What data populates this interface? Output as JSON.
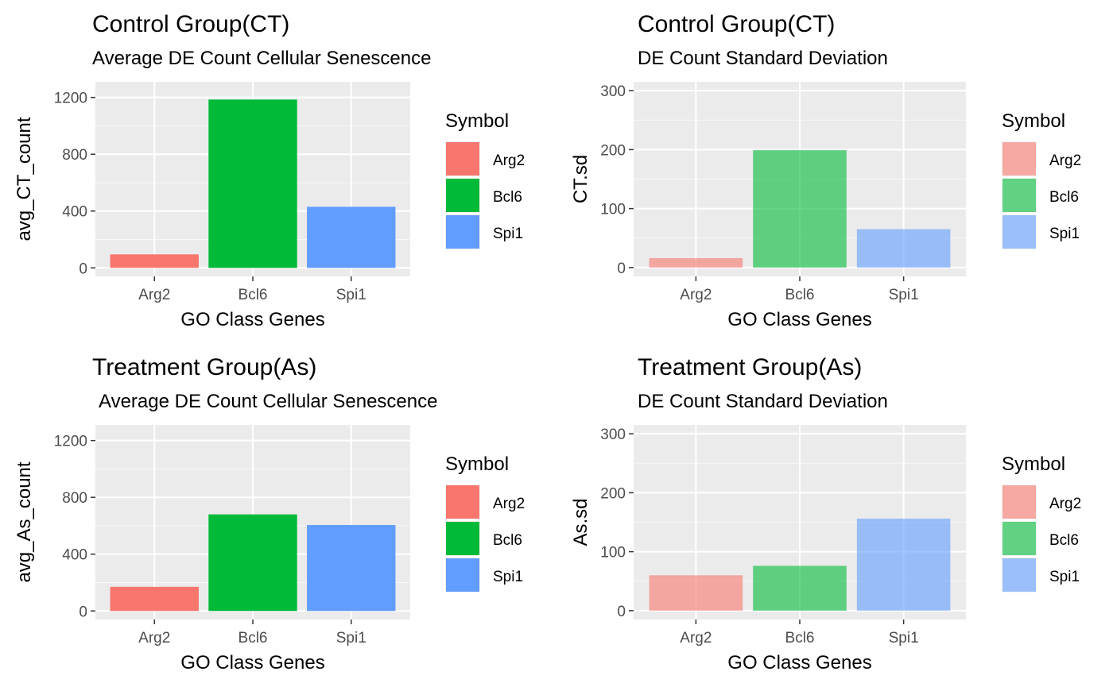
{
  "colors": {
    "panel_bg": "#EBEBEB",
    "grid": "#FFFFFF",
    "tick": "#333333",
    "Arg2": "#F8766D",
    "Bcl6": "#00BA38",
    "Spi1": "#619CFF"
  },
  "chart_data": [
    {
      "type": "bar",
      "title": "Control Group(CT)",
      "subtitle": "Average DE Count Cellular Senescence",
      "xlabel": "GO Class Genes",
      "ylabel": "avg_CT_count",
      "categories": [
        "Arg2",
        "Bcl6",
        "Spi1"
      ],
      "values": [
        95,
        1185,
        430
      ],
      "ylim": [
        -60,
        1310
      ],
      "yticks": [
        0,
        400,
        800,
        1200
      ],
      "bar_opacity": 1.0,
      "grid": true,
      "legend": {
        "title": "Symbol",
        "entries": [
          "Arg2",
          "Bcl6",
          "Spi1"
        ],
        "position": "right"
      }
    },
    {
      "type": "bar",
      "title": "Control Group(CT)",
      "subtitle": "DE Count Standard Deviation",
      "xlabel": "GO Class Genes",
      "ylabel": "CT.sd",
      "categories": [
        "Arg2",
        "Bcl6",
        "Spi1"
      ],
      "values": [
        16,
        199,
        65
      ],
      "ylim": [
        -15,
        315
      ],
      "yticks": [
        0,
        100,
        200,
        300
      ],
      "bar_opacity": 0.6,
      "grid": true,
      "legend": {
        "title": "Symbol",
        "entries": [
          "Arg2",
          "Bcl6",
          "Spi1"
        ],
        "position": "right"
      }
    },
    {
      "type": "bar",
      "title": "Treatment Group(As)",
      "subtitle": "Average DE Count Cellular Senescence",
      "xlabel": "GO Class Genes",
      "ylabel": "avg_As_count",
      "categories": [
        "Arg2",
        "Bcl6",
        "Spi1"
      ],
      "values": [
        170,
        680,
        605
      ],
      "ylim": [
        -60,
        1310
      ],
      "yticks": [
        0,
        400,
        800,
        1200
      ],
      "bar_opacity": 1.0,
      "grid": true,
      "legend": {
        "title": "Symbol",
        "entries": [
          "Arg2",
          "Bcl6",
          "Spi1"
        ],
        "position": "right"
      }
    },
    {
      "type": "bar",
      "title": "Treatment Group(As)",
      "subtitle": "DE Count Standard Deviation",
      "xlabel": "GO Class Genes",
      "ylabel": "As.sd",
      "categories": [
        "Arg2",
        "Bcl6",
        "Spi1"
      ],
      "values": [
        60,
        76,
        156
      ],
      "ylim": [
        -15,
        315
      ],
      "yticks": [
        0,
        100,
        200,
        300
      ],
      "bar_opacity": 0.6,
      "grid": true,
      "legend": {
        "title": "Symbol",
        "entries": [
          "Arg2",
          "Bcl6",
          "Spi1"
        ],
        "position": "right"
      }
    }
  ]
}
